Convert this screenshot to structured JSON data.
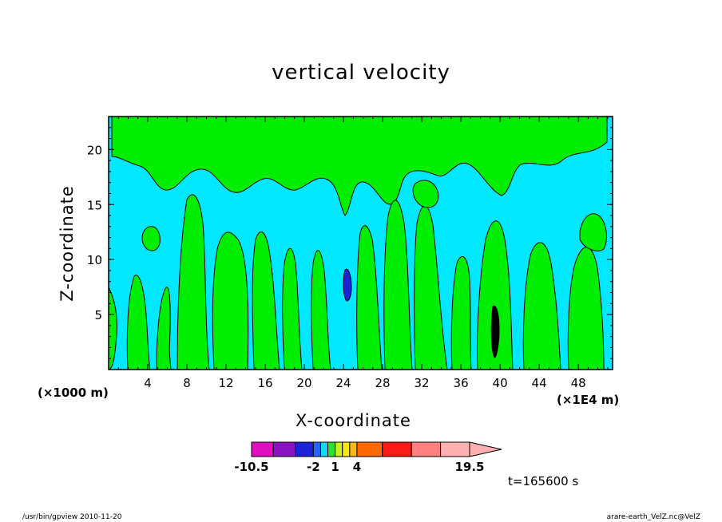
{
  "chart_data": {
    "type": "heatmap",
    "title": "vertical velocity",
    "xlabel": "X-coordinate",
    "ylabel": "Z-coordinate",
    "x_unit_label": "(×1000 m)",
    "x_scale_label": "(×1E4 m)",
    "time_label": "t=165600 s",
    "xlim": [
      0,
      51.5
    ],
    "ylim": [
      0,
      23
    ],
    "x_ticks": [
      4,
      8,
      12,
      16,
      20,
      24,
      28,
      32,
      36,
      40,
      44,
      48
    ],
    "y_ticks": [
      5,
      10,
      15,
      20
    ],
    "colorbar": {
      "levels": [
        -10.5,
        -7.5,
        -4.5,
        -2,
        -1,
        0,
        1,
        2,
        3,
        4,
        7.5,
        11.5,
        15.5,
        19.5
      ],
      "tick_labels": [
        "-10.5",
        "-2",
        "1",
        "4",
        "19.5"
      ],
      "colors": [
        "#e010c0",
        "#8a12c0",
        "#1c22d8",
        "#2266ff",
        "#18d8f0",
        "#30e030",
        "#c8f020",
        "#f8e818",
        "#f8b818",
        "#ff6a00",
        "#ff1a1a",
        "#ff8080",
        "#ffb0b0"
      ]
    },
    "regions": {
      "background_color": "#00e8ff",
      "positive_color": "#00ee00"
    }
  },
  "footer": {
    "left": "/usr/bin/gpview   2010-11-20",
    "right": "arare-earth_VelZ.nc@VelZ"
  }
}
